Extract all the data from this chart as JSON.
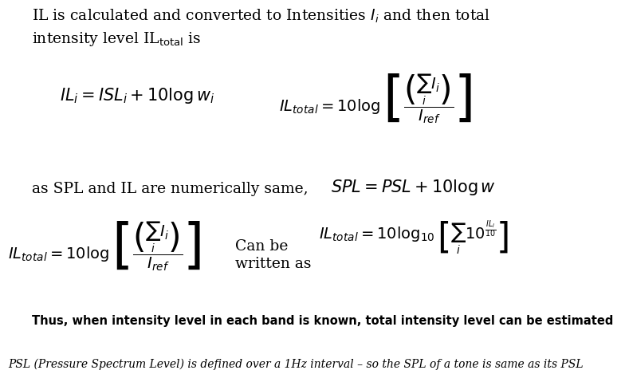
{
  "background_color": "#ffffff",
  "text_color": "#000000",
  "line1": "IL is calculated and converted to Intensities $I_i$ and then total",
  "line2": "intensity level IL$_{\\mathrm{total}}$ is",
  "eq1": "$IL_i = ISL_i + 10\\log w_i$",
  "eq2": "$IL_{total} = 10\\log\\left[\\dfrac{\\left(\\sum_i I_i\\right)}{I_{ref}}\\right]$",
  "eq3": "as SPL and IL are numerically same,",
  "eq4": "$SPL = PSL + 10\\log w$",
  "eq5": "$IL_{total} = 10\\log\\left[\\dfrac{\\left(\\sum_i I_i\\right)}{I_{ref}}\\right]$",
  "eq6_line1": "Can be",
  "eq6_line2": "written as",
  "eq7": "$IL_{total} = 10\\log_{10}\\left[\\sum_i 10^{\\frac{IL_i}{10}}\\right]$",
  "bold_text": "Thus, when intensity level in each band is known, total intensity level can be estimated",
  "italic_text": "PSL (Pressure Spectrum Level) is defined over a 1Hz interval – so the SPL of a tone is same as its PSL",
  "title_fontsize": 13.5,
  "eq_fontsize": 15,
  "eq_small_fontsize": 14,
  "bold_fontsize": 10.5,
  "italic_fontsize": 10
}
